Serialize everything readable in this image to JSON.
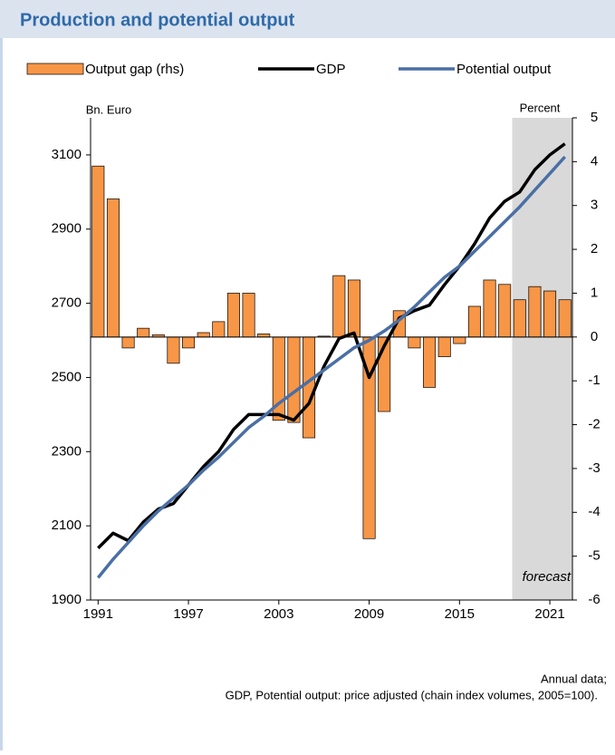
{
  "chart_data": {
    "type": "bar-line",
    "title": "Production and potential output",
    "y_label": "Bn. Euro",
    "y2_label": "Percent",
    "annotation": "forecast",
    "forecast_start": 2019,
    "notes": [
      "Annual data;",
      "GDP, Potential output: price adjusted (chain index volumes, 2005=100)."
    ],
    "x": [
      1991,
      1992,
      1993,
      1994,
      1995,
      1996,
      1997,
      1998,
      1999,
      2000,
      2001,
      2002,
      2003,
      2004,
      2005,
      2006,
      2007,
      2008,
      2009,
      2010,
      2011,
      2012,
      2013,
      2014,
      2015,
      2016,
      2017,
      2018,
      2019,
      2020,
      2021,
      2022
    ],
    "xlim": [
      1990.5,
      2022.5
    ],
    "xticks": [
      1991,
      1997,
      2003,
      2009,
      2015,
      2021
    ],
    "ylim": [
      1900,
      3200
    ],
    "yticks": [
      1900,
      2100,
      2300,
      2500,
      2700,
      2900,
      3100
    ],
    "y2lim": [
      -6,
      5
    ],
    "y2ticks": [
      -6,
      -5,
      -4,
      -3,
      -2,
      -1,
      0,
      1,
      2,
      3,
      4,
      5
    ],
    "series": [
      {
        "name": "Output gap (rhs)",
        "kind": "bar",
        "axis": "y2",
        "color": "#f79646",
        "values": [
          3.9,
          3.15,
          -0.25,
          0.2,
          0.05,
          -0.6,
          -0.25,
          0.1,
          0.35,
          1.0,
          1.0,
          0.07,
          -1.9,
          -1.95,
          -2.3,
          0.02,
          1.4,
          1.3,
          -4.6,
          -1.7,
          0.6,
          -0.25,
          -1.15,
          -0.45,
          -0.15,
          0.7,
          1.3,
          1.2,
          0.85,
          1.15,
          1.05,
          0.85
        ]
      },
      {
        "name": "GDP",
        "kind": "line",
        "color": "#000000",
        "values": [
          2040,
          2080,
          2060,
          2110,
          2145,
          2160,
          2210,
          2260,
          2300,
          2360,
          2400,
          2400,
          2400,
          2385,
          2430,
          2530,
          2605,
          2620,
          2500,
          2585,
          2660,
          2680,
          2695,
          2750,
          2800,
          2860,
          2930,
          2975,
          3000,
          3060,
          3100,
          3130
        ]
      },
      {
        "name": "Potential output",
        "kind": "line",
        "color": "#4a6fa5",
        "values": [
          1960,
          2010,
          2055,
          2100,
          2140,
          2175,
          2210,
          2250,
          2285,
          2325,
          2365,
          2395,
          2430,
          2460,
          2490,
          2520,
          2550,
          2580,
          2600,
          2625,
          2655,
          2690,
          2730,
          2770,
          2800,
          2840,
          2880,
          2920,
          2960,
          3005,
          3050,
          3095
        ]
      }
    ]
  }
}
